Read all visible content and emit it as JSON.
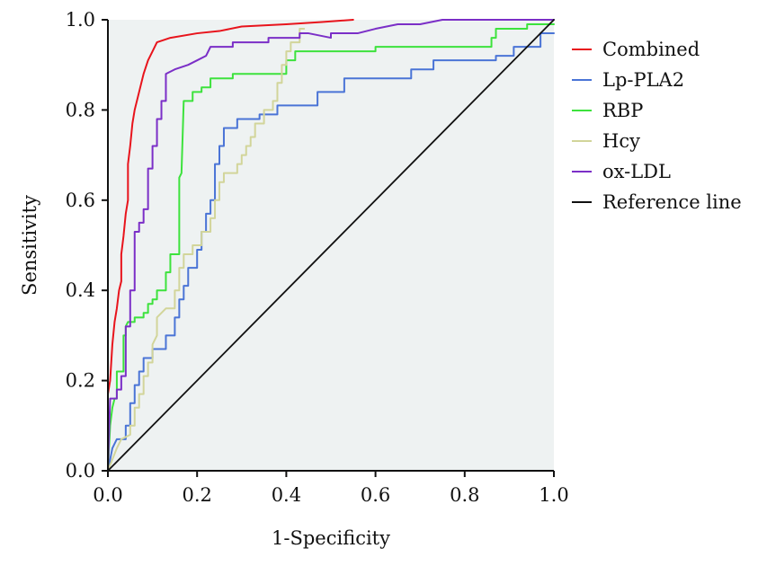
{
  "chart_data": {
    "type": "line",
    "xlabel": "1-Specificity",
    "ylabel": "Sensitivity",
    "xlim": [
      0,
      1
    ],
    "ylim": [
      0,
      1
    ],
    "xticks": [
      "0.0",
      "0.2",
      "0.4",
      "0.6",
      "0.8",
      "1.0"
    ],
    "yticks": [
      "0.0",
      "0.2",
      "0.4",
      "0.6",
      "0.8",
      "1.0"
    ],
    "plot_background": "#eef2f2",
    "legend_position": "right",
    "series": [
      {
        "name": "Combined",
        "color": "#e8141c",
        "points": [
          [
            0,
            0.17
          ],
          [
            0.005,
            0.2
          ],
          [
            0.01,
            0.28
          ],
          [
            0.015,
            0.33
          ],
          [
            0.02,
            0.36
          ],
          [
            0.025,
            0.4
          ],
          [
            0.03,
            0.42
          ],
          [
            0.03,
            0.48
          ],
          [
            0.035,
            0.52
          ],
          [
            0.04,
            0.57
          ],
          [
            0.045,
            0.6
          ],
          [
            0.045,
            0.68
          ],
          [
            0.05,
            0.72
          ],
          [
            0.055,
            0.77
          ],
          [
            0.06,
            0.8
          ],
          [
            0.07,
            0.84
          ],
          [
            0.08,
            0.88
          ],
          [
            0.09,
            0.91
          ],
          [
            0.1,
            0.93
          ],
          [
            0.11,
            0.95
          ],
          [
            0.14,
            0.96
          ],
          [
            0.2,
            0.97
          ],
          [
            0.25,
            0.975
          ],
          [
            0.3,
            0.985
          ],
          [
            0.4,
            0.99
          ],
          [
            0.48,
            0.995
          ],
          [
            0.55,
            1.0
          ]
        ]
      },
      {
        "name": "Lp-PLA2",
        "color": "#4a74d6",
        "points": [
          [
            0,
            0
          ],
          [
            0.01,
            0.05
          ],
          [
            0.02,
            0.07
          ],
          [
            0.04,
            0.07
          ],
          [
            0.04,
            0.1
          ],
          [
            0.05,
            0.1
          ],
          [
            0.05,
            0.15
          ],
          [
            0.06,
            0.15
          ],
          [
            0.06,
            0.19
          ],
          [
            0.07,
            0.19
          ],
          [
            0.07,
            0.22
          ],
          [
            0.08,
            0.22
          ],
          [
            0.08,
            0.25
          ],
          [
            0.1,
            0.25
          ],
          [
            0.1,
            0.27
          ],
          [
            0.13,
            0.27
          ],
          [
            0.13,
            0.3
          ],
          [
            0.15,
            0.3
          ],
          [
            0.15,
            0.34
          ],
          [
            0.16,
            0.34
          ],
          [
            0.16,
            0.38
          ],
          [
            0.17,
            0.38
          ],
          [
            0.17,
            0.41
          ],
          [
            0.18,
            0.41
          ],
          [
            0.18,
            0.45
          ],
          [
            0.2,
            0.45
          ],
          [
            0.2,
            0.49
          ],
          [
            0.21,
            0.49
          ],
          [
            0.21,
            0.53
          ],
          [
            0.22,
            0.53
          ],
          [
            0.22,
            0.57
          ],
          [
            0.23,
            0.57
          ],
          [
            0.23,
            0.6
          ],
          [
            0.24,
            0.6
          ],
          [
            0.24,
            0.68
          ],
          [
            0.25,
            0.68
          ],
          [
            0.25,
            0.72
          ],
          [
            0.26,
            0.72
          ],
          [
            0.26,
            0.76
          ],
          [
            0.29,
            0.76
          ],
          [
            0.29,
            0.78
          ],
          [
            0.34,
            0.78
          ],
          [
            0.34,
            0.79
          ],
          [
            0.38,
            0.79
          ],
          [
            0.38,
            0.81
          ],
          [
            0.47,
            0.81
          ],
          [
            0.47,
            0.84
          ],
          [
            0.53,
            0.84
          ],
          [
            0.53,
            0.87
          ],
          [
            0.68,
            0.87
          ],
          [
            0.68,
            0.89
          ],
          [
            0.73,
            0.89
          ],
          [
            0.73,
            0.91
          ],
          [
            0.87,
            0.91
          ],
          [
            0.87,
            0.92
          ],
          [
            0.91,
            0.92
          ],
          [
            0.91,
            0.94
          ],
          [
            0.97,
            0.94
          ],
          [
            0.97,
            0.97
          ],
          [
            1.0,
            0.97
          ]
        ]
      },
      {
        "name": "RBP",
        "color": "#3de23d",
        "points": [
          [
            0,
            0
          ],
          [
            0.005,
            0.1
          ],
          [
            0.01,
            0.14
          ],
          [
            0.015,
            0.16
          ],
          [
            0.02,
            0.16
          ],
          [
            0.02,
            0.22
          ],
          [
            0.035,
            0.22
          ],
          [
            0.035,
            0.3
          ],
          [
            0.04,
            0.3
          ],
          [
            0.04,
            0.32
          ],
          [
            0.045,
            0.33
          ],
          [
            0.06,
            0.33
          ],
          [
            0.06,
            0.34
          ],
          [
            0.08,
            0.34
          ],
          [
            0.08,
            0.35
          ],
          [
            0.09,
            0.35
          ],
          [
            0.09,
            0.37
          ],
          [
            0.1,
            0.37
          ],
          [
            0.1,
            0.38
          ],
          [
            0.11,
            0.38
          ],
          [
            0.11,
            0.4
          ],
          [
            0.13,
            0.4
          ],
          [
            0.13,
            0.44
          ],
          [
            0.14,
            0.44
          ],
          [
            0.14,
            0.48
          ],
          [
            0.16,
            0.48
          ],
          [
            0.16,
            0.65
          ],
          [
            0.165,
            0.66
          ],
          [
            0.17,
            0.82
          ],
          [
            0.19,
            0.82
          ],
          [
            0.19,
            0.84
          ],
          [
            0.21,
            0.84
          ],
          [
            0.21,
            0.85
          ],
          [
            0.23,
            0.85
          ],
          [
            0.23,
            0.87
          ],
          [
            0.28,
            0.87
          ],
          [
            0.28,
            0.88
          ],
          [
            0.4,
            0.88
          ],
          [
            0.4,
            0.91
          ],
          [
            0.42,
            0.91
          ],
          [
            0.42,
            0.93
          ],
          [
            0.6,
            0.93
          ],
          [
            0.6,
            0.94
          ],
          [
            0.86,
            0.94
          ],
          [
            0.86,
            0.96
          ],
          [
            0.87,
            0.96
          ],
          [
            0.87,
            0.98
          ],
          [
            0.94,
            0.98
          ],
          [
            0.94,
            0.99
          ],
          [
            1.0,
            0.99
          ]
        ]
      },
      {
        "name": "Hcy",
        "color": "#d2d59a",
        "points": [
          [
            0,
            0
          ],
          [
            0.02,
            0.05
          ],
          [
            0.03,
            0.07
          ],
          [
            0.05,
            0.08
          ],
          [
            0.05,
            0.1
          ],
          [
            0.06,
            0.1
          ],
          [
            0.06,
            0.14
          ],
          [
            0.07,
            0.14
          ],
          [
            0.07,
            0.17
          ],
          [
            0.08,
            0.17
          ],
          [
            0.08,
            0.21
          ],
          [
            0.09,
            0.21
          ],
          [
            0.09,
            0.24
          ],
          [
            0.1,
            0.24
          ],
          [
            0.1,
            0.28
          ],
          [
            0.11,
            0.3
          ],
          [
            0.11,
            0.34
          ],
          [
            0.13,
            0.36
          ],
          [
            0.15,
            0.36
          ],
          [
            0.15,
            0.4
          ],
          [
            0.16,
            0.4
          ],
          [
            0.16,
            0.45
          ],
          [
            0.17,
            0.45
          ],
          [
            0.17,
            0.48
          ],
          [
            0.19,
            0.48
          ],
          [
            0.19,
            0.5
          ],
          [
            0.21,
            0.5
          ],
          [
            0.21,
            0.53
          ],
          [
            0.23,
            0.53
          ],
          [
            0.23,
            0.56
          ],
          [
            0.24,
            0.56
          ],
          [
            0.24,
            0.6
          ],
          [
            0.25,
            0.6
          ],
          [
            0.25,
            0.64
          ],
          [
            0.26,
            0.64
          ],
          [
            0.26,
            0.66
          ],
          [
            0.29,
            0.66
          ],
          [
            0.29,
            0.68
          ],
          [
            0.3,
            0.68
          ],
          [
            0.3,
            0.7
          ],
          [
            0.31,
            0.7
          ],
          [
            0.31,
            0.72
          ],
          [
            0.32,
            0.72
          ],
          [
            0.32,
            0.74
          ],
          [
            0.33,
            0.74
          ],
          [
            0.33,
            0.77
          ],
          [
            0.35,
            0.77
          ],
          [
            0.35,
            0.8
          ],
          [
            0.37,
            0.8
          ],
          [
            0.37,
            0.82
          ],
          [
            0.38,
            0.82
          ],
          [
            0.38,
            0.86
          ],
          [
            0.39,
            0.86
          ],
          [
            0.39,
            0.9
          ],
          [
            0.4,
            0.9
          ],
          [
            0.4,
            0.93
          ],
          [
            0.41,
            0.93
          ],
          [
            0.41,
            0.95
          ],
          [
            0.43,
            0.95
          ],
          [
            0.43,
            0.98
          ],
          [
            0.44,
            0.98
          ]
        ]
      },
      {
        "name": "ox-LDL",
        "color": "#7b2fc7",
        "points": [
          [
            0,
            0
          ],
          [
            0.005,
            0.16
          ],
          [
            0.02,
            0.16
          ],
          [
            0.02,
            0.18
          ],
          [
            0.03,
            0.18
          ],
          [
            0.03,
            0.21
          ],
          [
            0.04,
            0.21
          ],
          [
            0.04,
            0.32
          ],
          [
            0.05,
            0.32
          ],
          [
            0.05,
            0.4
          ],
          [
            0.06,
            0.4
          ],
          [
            0.06,
            0.53
          ],
          [
            0.07,
            0.53
          ],
          [
            0.07,
            0.55
          ],
          [
            0.08,
            0.55
          ],
          [
            0.08,
            0.58
          ],
          [
            0.09,
            0.58
          ],
          [
            0.09,
            0.67
          ],
          [
            0.1,
            0.67
          ],
          [
            0.1,
            0.72
          ],
          [
            0.11,
            0.72
          ],
          [
            0.11,
            0.78
          ],
          [
            0.12,
            0.78
          ],
          [
            0.12,
            0.82
          ],
          [
            0.13,
            0.82
          ],
          [
            0.13,
            0.88
          ],
          [
            0.15,
            0.89
          ],
          [
            0.18,
            0.9
          ],
          [
            0.2,
            0.91
          ],
          [
            0.22,
            0.92
          ],
          [
            0.23,
            0.94
          ],
          [
            0.28,
            0.94
          ],
          [
            0.28,
            0.95
          ],
          [
            0.36,
            0.95
          ],
          [
            0.36,
            0.96
          ],
          [
            0.43,
            0.96
          ],
          [
            0.43,
            0.97
          ],
          [
            0.45,
            0.97
          ],
          [
            0.5,
            0.96
          ],
          [
            0.5,
            0.97
          ],
          [
            0.56,
            0.97
          ],
          [
            0.6,
            0.98
          ],
          [
            0.65,
            0.99
          ],
          [
            0.7,
            0.99
          ],
          [
            0.75,
            1.0
          ],
          [
            1.0,
            1.0
          ]
        ]
      },
      {
        "name": "Reference line",
        "color": "#111111",
        "points": [
          [
            0,
            0
          ],
          [
            1,
            1
          ]
        ]
      }
    ]
  }
}
